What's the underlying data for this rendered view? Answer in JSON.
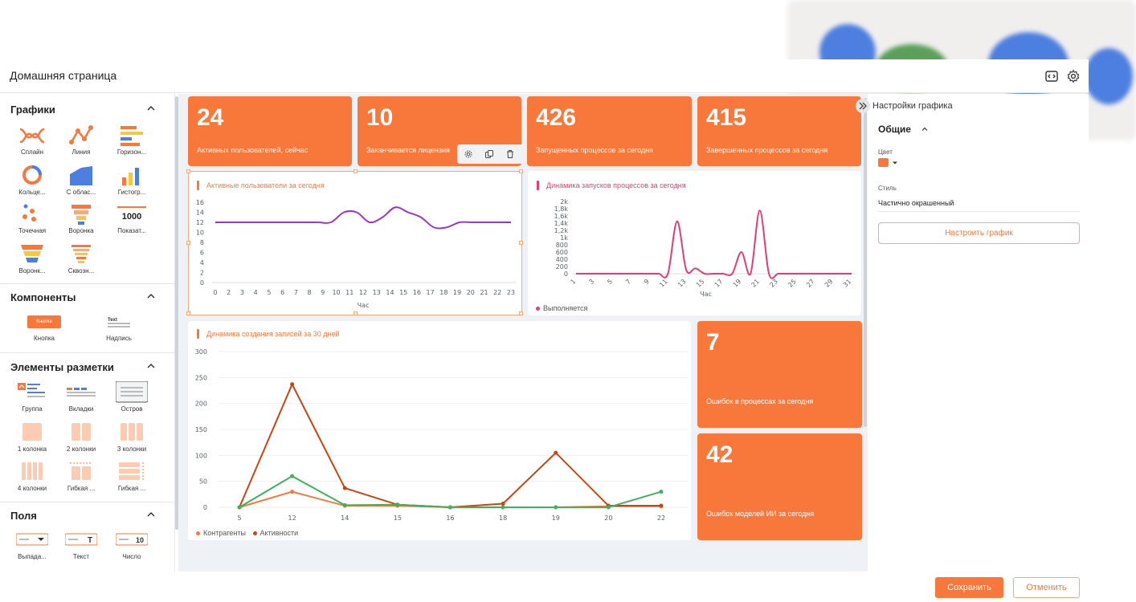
{
  "header": {
    "title": "Домашняя страница"
  },
  "palette": {
    "charts": {
      "title": "Графики",
      "items": [
        "Сплайн",
        "Линия",
        "Горизон...",
        "Кольце...",
        "С облас...",
        "Гистогр...",
        "Точечная",
        "Воронка",
        "Показат...",
        "Воронк...",
        "Сквозн..."
      ],
      "indicator_value": "1000"
    },
    "components": {
      "title": "Компоненты",
      "items": [
        "Кнопка",
        "Надпись"
      ],
      "button_preview": "Кнопка",
      "text_preview": "Text"
    },
    "layout": {
      "title": "Элементы разметки",
      "items": [
        "Группа",
        "Вкладки",
        "Остров",
        "1 колонка",
        "2 колонки",
        "3 колонки",
        "4 колонки",
        "Гибкая ...",
        "Гибкая ..."
      ]
    },
    "fields": {
      "title": "Поля",
      "items": [
        "Выпада...",
        "Текст",
        "Число"
      ],
      "number_preview": "10",
      "text_preview": "T"
    }
  },
  "kpis": [
    {
      "value": "24",
      "caption": "Активных пользователей, сейчас"
    },
    {
      "value": "10",
      "caption": "Заканчивается лицензия"
    },
    {
      "value": "426",
      "caption": "Запущенных процессов за сегодня"
    },
    {
      "value": "415",
      "caption": "Завершенных процессов за сегодня"
    },
    {
      "value": "7",
      "caption": "Ошибок в процессах за сегодня"
    },
    {
      "value": "42",
      "caption": "Ошибок моделей ИИ за сегодня"
    }
  ],
  "chart_data": [
    {
      "type": "line",
      "title": "Активные пользователи за сегодня",
      "xlabel": "Час",
      "ylabel": "",
      "x": [
        0,
        1,
        2,
        3,
        4,
        5,
        6,
        7,
        8,
        9,
        10,
        11,
        12,
        13,
        14,
        15,
        16,
        17,
        18,
        19,
        20,
        21,
        22,
        23
      ],
      "x_ticks": [
        "0",
        "2",
        "3",
        "4",
        "5",
        "6",
        "7",
        "8",
        "9",
        "10",
        "11",
        "12",
        "13",
        "14",
        "15",
        "16",
        "17",
        "18",
        "19",
        "20",
        "21",
        "22",
        "23"
      ],
      "series": [
        {
          "values": [
            12,
            12,
            12,
            12,
            12,
            12,
            12,
            12,
            12,
            12,
            14,
            14,
            12,
            13,
            15,
            14,
            13,
            11,
            11,
            12,
            12,
            12,
            12,
            12
          ],
          "color": "#9c35c9"
        }
      ],
      "ylim": [
        0,
        16
      ],
      "y_ticks": [
        0,
        2,
        4,
        6,
        8,
        10,
        12,
        14,
        16
      ],
      "grid": false,
      "legend": "none"
    },
    {
      "type": "line",
      "title": "Динамика запусков процессов за сегодня",
      "xlabel": "Час",
      "ylabel": "",
      "x": [
        1,
        2,
        3,
        4,
        5,
        6,
        7,
        8,
        9,
        10,
        11,
        12,
        13,
        14,
        15,
        16,
        17,
        18,
        19,
        20,
        21,
        22,
        23,
        24,
        25,
        26,
        27,
        28,
        29,
        30,
        31
      ],
      "x_ticks": [
        "1",
        "3",
        "5",
        "7",
        "9",
        "11",
        "13",
        "15",
        "17",
        "19",
        "21",
        "23",
        "25",
        "27",
        "29",
        "31"
      ],
      "series": [
        {
          "name": "Выполняется",
          "color": "#e23c76",
          "values": [
            0,
            0,
            0,
            0,
            0,
            0,
            0,
            0,
            0,
            0,
            0,
            1450,
            100,
            150,
            0,
            0,
            0,
            0,
            600,
            0,
            1750,
            0,
            0,
            0,
            0,
            0,
            0,
            0,
            0,
            0,
            0
          ]
        }
      ],
      "ylim": [
        0,
        2000
      ],
      "y_ticks": [
        "0",
        "200",
        "400",
        "600",
        "800",
        "1k",
        "1,2k",
        "1,4k",
        "1,6k",
        "1,8k",
        "2k"
      ],
      "grid": false,
      "legend": "bottom-left"
    },
    {
      "type": "line",
      "title": "Динамика создания записей за 30 дней",
      "xlabel": "",
      "ylabel": "",
      "categories": [
        "5",
        "12",
        "14",
        "15",
        "16",
        "18",
        "19",
        "20",
        "22"
      ],
      "series": [
        {
          "name": "Контрагенты",
          "color": "#f7783a",
          "values": [
            0,
            30,
            3,
            3,
            0,
            0,
            0,
            2,
            2
          ]
        },
        {
          "name": "Активности",
          "color": "#c8450f",
          "values": [
            0,
            237,
            37,
            5,
            0,
            7,
            105,
            3,
            3
          ]
        },
        {
          "name": "",
          "color": "#3fb15e",
          "values": [
            0,
            60,
            4,
            5,
            0,
            0,
            0,
            0,
            30
          ]
        }
      ],
      "ylim": [
        0,
        300
      ],
      "y_ticks": [
        0,
        50,
        100,
        150,
        200,
        250,
        300
      ],
      "grid": true,
      "legend": "bottom-left"
    }
  ],
  "settings": {
    "title": "Настройки графика",
    "section": "Общие",
    "color_label": "Цвет",
    "color_value": "#f7783a",
    "style_label": "Стиль",
    "style_value": "Частично окрашенный",
    "configure_label": "Настроить график"
  },
  "footer": {
    "save_label": "Сохранить",
    "cancel_label": "Отменить"
  },
  "colors": {
    "accent": "#f7783a",
    "accent_light": "#f7a97e"
  }
}
